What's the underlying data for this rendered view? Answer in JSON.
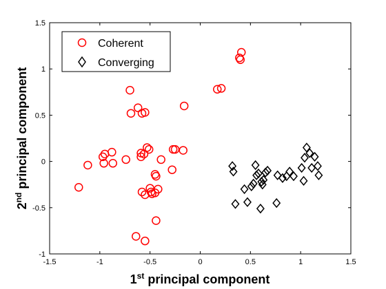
{
  "chart_data": {
    "type": "scatter",
    "title": "",
    "xlabel": {
      "prefix": "1",
      "sup": "st",
      "rest": " principal component"
    },
    "ylabel": {
      "prefix": "2",
      "sup": "nd",
      "rest": " principal component"
    },
    "xlim": [
      -1.5,
      1.5
    ],
    "ylim": [
      -1,
      1.5
    ],
    "xticks": [
      -1.5,
      -1,
      -0.5,
      0,
      0.5,
      1,
      1.5
    ],
    "xtick_labels": [
      "-1.5",
      "-1",
      "-0.5",
      "0",
      "0.5",
      "1",
      "1.5"
    ],
    "yticks": [
      -1,
      -0.5,
      0,
      0.5,
      1,
      1.5
    ],
    "ytick_labels": [
      "-1",
      "-0.5",
      "0",
      "0.5",
      "1",
      "1.5"
    ],
    "grid": false,
    "legend_position": "top-left",
    "series": [
      {
        "name": "Coherent",
        "marker": "circle",
        "color": "#ff0000",
        "points": [
          [
            -1.21,
            -0.28
          ],
          [
            -1.12,
            -0.04
          ],
          [
            -0.97,
            0.05
          ],
          [
            -0.95,
            0.08
          ],
          [
            -0.96,
            -0.02
          ],
          [
            -0.88,
            0.1
          ],
          [
            -0.87,
            -0.02
          ],
          [
            -0.74,
            0.02
          ],
          [
            -0.7,
            0.77
          ],
          [
            -0.69,
            0.52
          ],
          [
            -0.64,
            -0.81
          ],
          [
            -0.62,
            0.58
          ],
          [
            -0.59,
            0.09
          ],
          [
            -0.58,
            0.52
          ],
          [
            -0.55,
            0.53
          ],
          [
            -0.59,
            0.05
          ],
          [
            -0.56,
            0.08
          ],
          [
            -0.53,
            0.15
          ],
          [
            -0.51,
            0.13
          ],
          [
            -0.5,
            -0.29
          ],
          [
            -0.49,
            -0.33
          ],
          [
            -0.48,
            -0.35
          ],
          [
            -0.58,
            -0.33
          ],
          [
            -0.55,
            -0.36
          ],
          [
            -0.45,
            -0.34
          ],
          [
            -0.45,
            -0.14
          ],
          [
            -0.44,
            -0.16
          ],
          [
            -0.42,
            -0.3
          ],
          [
            -0.44,
            -0.64
          ],
          [
            -0.39,
            0.02
          ],
          [
            -0.28,
            -0.09
          ],
          [
            -0.27,
            0.13
          ],
          [
            -0.25,
            0.13
          ],
          [
            -0.17,
            0.12
          ],
          [
            -0.16,
            0.6
          ],
          [
            -0.55,
            -0.86
          ],
          [
            0.17,
            0.78
          ],
          [
            0.21,
            0.79
          ],
          [
            0.39,
            1.12
          ],
          [
            0.4,
            1.1
          ],
          [
            0.41,
            1.18
          ]
        ]
      },
      {
        "name": "Converging",
        "marker": "diamond",
        "color": "#000000",
        "points": [
          [
            0.32,
            -0.05
          ],
          [
            0.33,
            -0.11
          ],
          [
            0.35,
            -0.46
          ],
          [
            0.44,
            -0.3
          ],
          [
            0.47,
            -0.44
          ],
          [
            0.51,
            -0.27
          ],
          [
            0.53,
            -0.24
          ],
          [
            0.55,
            -0.04
          ],
          [
            0.56,
            -0.15
          ],
          [
            0.58,
            -0.13
          ],
          [
            0.6,
            -0.51
          ],
          [
            0.61,
            -0.22
          ],
          [
            0.62,
            -0.25
          ],
          [
            0.63,
            -0.2
          ],
          [
            0.65,
            -0.12
          ],
          [
            0.67,
            -0.1
          ],
          [
            0.76,
            -0.45
          ],
          [
            0.77,
            -0.15
          ],
          [
            0.82,
            -0.18
          ],
          [
            0.86,
            -0.16
          ],
          [
            0.89,
            -0.11
          ],
          [
            0.93,
            -0.16
          ],
          [
            1.01,
            -0.07
          ],
          [
            1.03,
            -0.21
          ],
          [
            1.04,
            0.04
          ],
          [
            1.06,
            0.15
          ],
          [
            1.09,
            0.09
          ],
          [
            1.11,
            -0.07
          ],
          [
            1.14,
            0.05
          ],
          [
            1.17,
            -0.05
          ],
          [
            1.18,
            -0.15
          ]
        ]
      }
    ]
  }
}
